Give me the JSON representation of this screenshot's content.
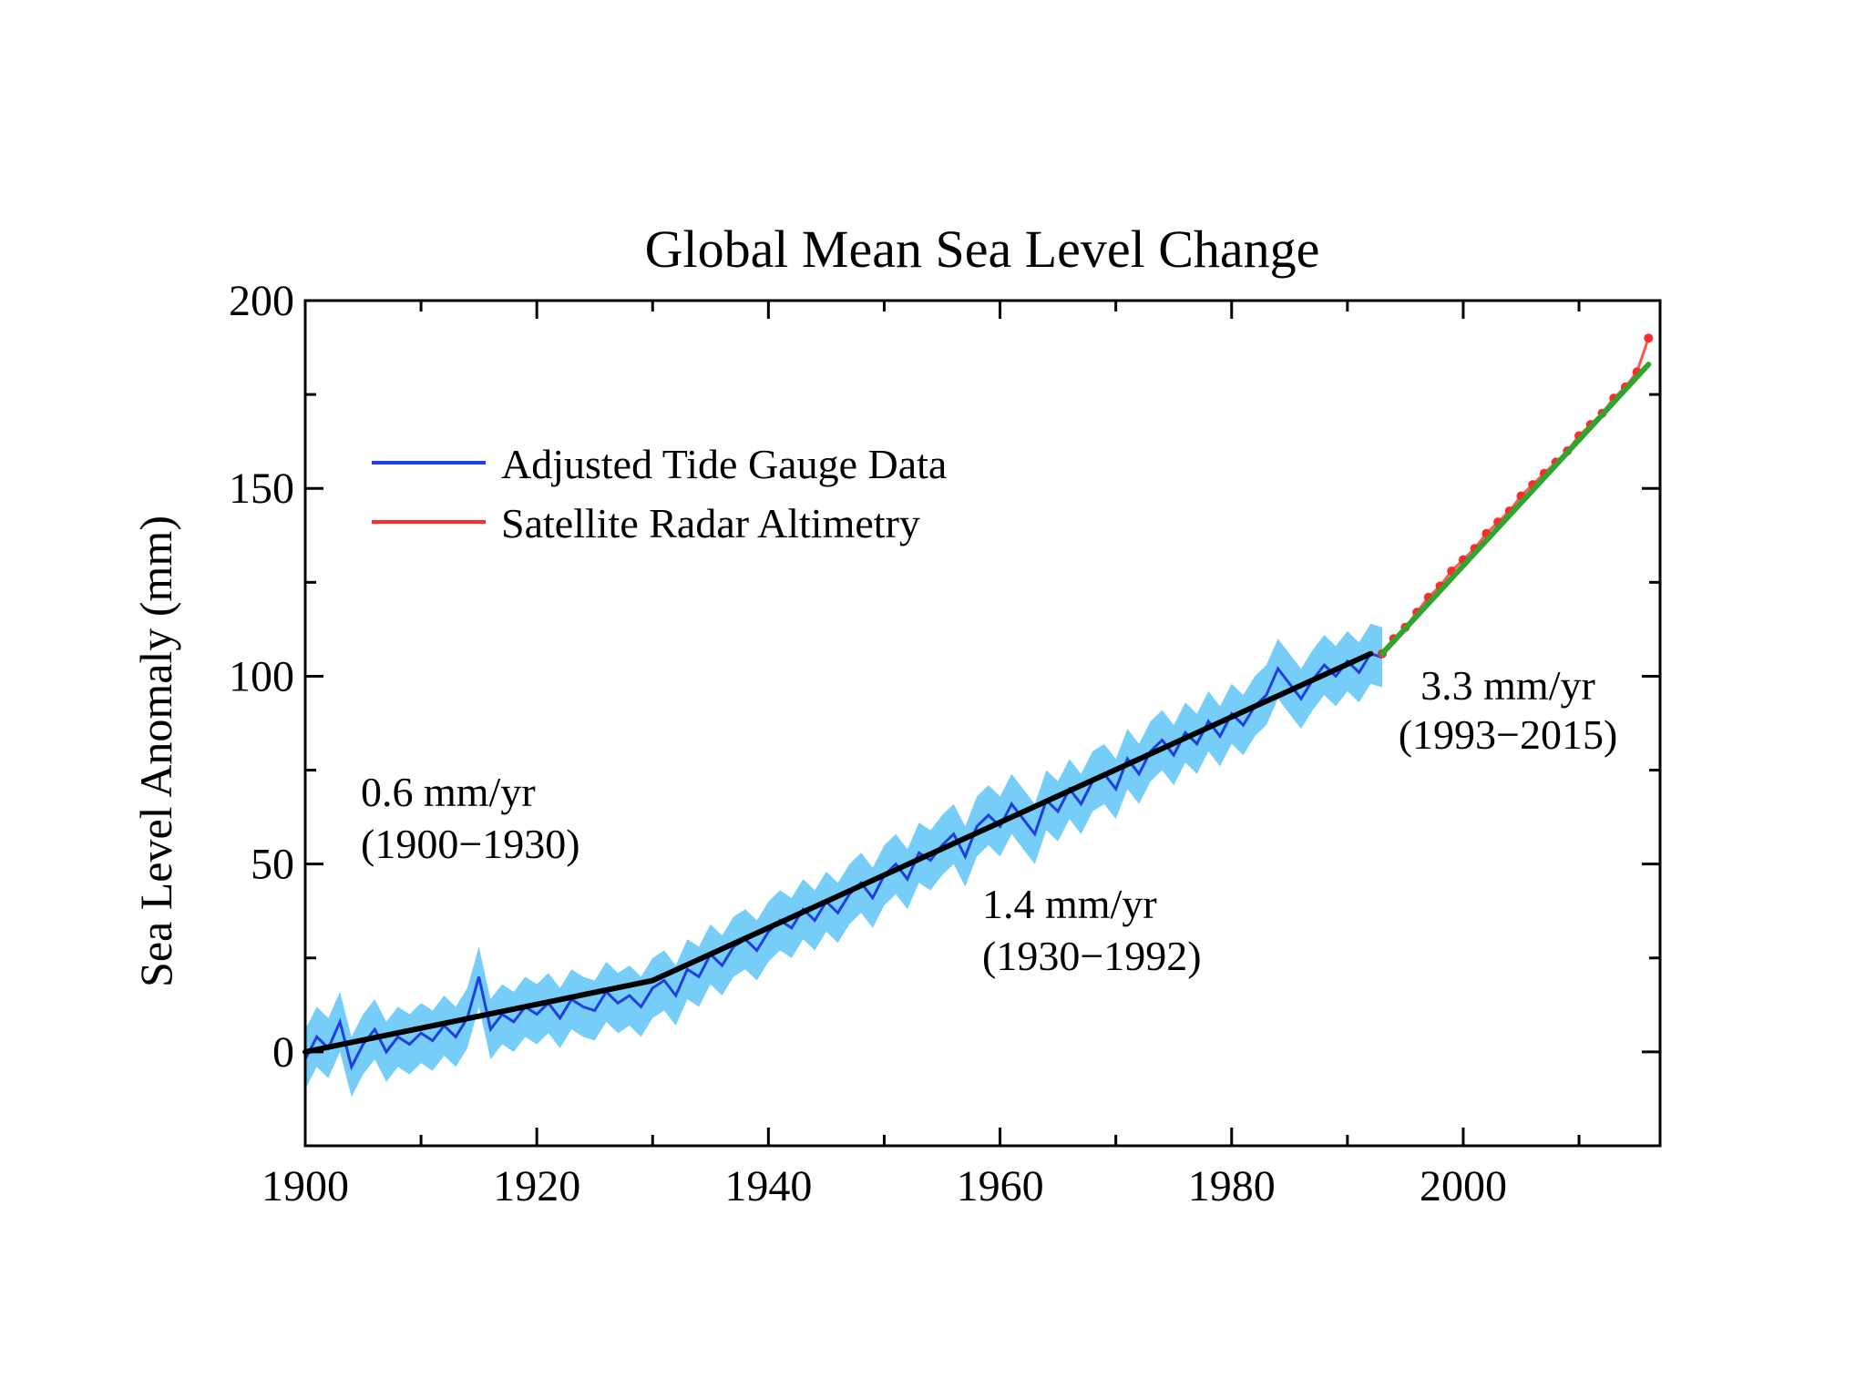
{
  "chart_data": {
    "type": "line",
    "title": "Global Mean Sea Level Change",
    "xlabel": "",
    "ylabel": "Sea Level Anomaly (mm)",
    "xlim": [
      1900,
      2017
    ],
    "ylim": [
      -25,
      200
    ],
    "x_ticks": [
      1900,
      1920,
      1940,
      1960,
      1980,
      2000
    ],
    "x_tick_labels": [
      "1900",
      "1920",
      "1940",
      "1960",
      "1980",
      "2000"
    ],
    "x_minor_ticks": [
      1910,
      1930,
      1950,
      1970,
      1990,
      2010
    ],
    "y_ticks": [
      0,
      50,
      100,
      150,
      200
    ],
    "y_tick_labels": [
      "0",
      "50",
      "100",
      "150",
      "200"
    ],
    "y_minor_ticks": [
      25,
      75,
      125,
      175
    ],
    "grid": false,
    "legend": {
      "position": "top-left",
      "entries": [
        {
          "label": "Adjusted Tide Gauge Data",
          "color": "#1f3fe0"
        },
        {
          "label": "Satellite Radar Altimetry",
          "color": "#ff2a2a"
        }
      ]
    },
    "series": [
      {
        "name": "Adjusted Tide Gauge Data",
        "color": "#1f3fe0",
        "uncertainty_color": "#5ec4f7",
        "uncertainty_mm": 8,
        "x": [
          1900,
          1901,
          1902,
          1903,
          1904,
          1905,
          1906,
          1907,
          1908,
          1909,
          1910,
          1911,
          1912,
          1913,
          1914,
          1915,
          1916,
          1917,
          1918,
          1919,
          1920,
          1921,
          1922,
          1923,
          1924,
          1925,
          1926,
          1927,
          1928,
          1929,
          1930,
          1931,
          1932,
          1933,
          1934,
          1935,
          1936,
          1937,
          1938,
          1939,
          1940,
          1941,
          1942,
          1943,
          1944,
          1945,
          1946,
          1947,
          1948,
          1949,
          1950,
          1951,
          1952,
          1953,
          1954,
          1955,
          1956,
          1957,
          1958,
          1959,
          1960,
          1961,
          1962,
          1963,
          1964,
          1965,
          1966,
          1967,
          1968,
          1969,
          1970,
          1971,
          1972,
          1973,
          1974,
          1975,
          1976,
          1977,
          1978,
          1979,
          1980,
          1981,
          1982,
          1983,
          1984,
          1985,
          1986,
          1987,
          1988,
          1989,
          1990,
          1991,
          1992,
          1993
        ],
        "y": [
          -2,
          4,
          1,
          8,
          -4,
          2,
          6,
          0,
          4,
          2,
          5,
          3,
          7,
          4,
          9,
          20,
          6,
          10,
          8,
          12,
          10,
          13,
          9,
          14,
          12,
          11,
          16,
          13,
          15,
          12,
          17,
          19,
          15,
          22,
          20,
          26,
          23,
          28,
          30,
          27,
          32,
          35,
          33,
          38,
          35,
          40,
          37,
          42,
          45,
          41,
          47,
          50,
          46,
          53,
          51,
          55,
          58,
          52,
          60,
          63,
          60,
          66,
          62,
          58,
          67,
          64,
          70,
          66,
          72,
          74,
          70,
          78,
          74,
          80,
          83,
          79,
          85,
          82,
          88,
          84,
          90,
          87,
          92,
          95,
          102,
          98,
          94,
          99,
          103,
          100,
          104,
          101,
          106,
          105
        ]
      },
      {
        "name": "Satellite Radar Altimetry",
        "color": "#ff2a2a",
        "x": [
          1993,
          1994,
          1995,
          1996,
          1997,
          1998,
          1999,
          2000,
          2001,
          2002,
          2003,
          2004,
          2005,
          2006,
          2007,
          2008,
          2009,
          2010,
          2011,
          2012,
          2013,
          2014,
          2015,
          2016
        ],
        "y": [
          106,
          110,
          113,
          117,
          121,
          124,
          128,
          131,
          134,
          138,
          141,
          144,
          148,
          151,
          154,
          157,
          160,
          164,
          167,
          170,
          174,
          177,
          181,
          190
        ]
      }
    ],
    "trend_lines": [
      {
        "period": "1900–1930",
        "rate": "0.6 mm/yr",
        "x": [
          1900,
          1930
        ],
        "y": [
          0,
          19
        ],
        "color": "#000000"
      },
      {
        "period": "1930–1992",
        "rate": "1.4 mm/yr",
        "x": [
          1930,
          1992
        ],
        "y": [
          19,
          106
        ],
        "color": "#000000"
      },
      {
        "period": "1993–2015",
        "rate": "3.3 mm/yr",
        "x": [
          1993,
          2016
        ],
        "y": [
          106,
          183
        ],
        "color": "#2fa52f"
      }
    ],
    "annotations": {
      "a1_rate": "0.6 mm/yr",
      "a1_period": "(1900−1930)",
      "a2_rate": "1.4 mm/yr",
      "a2_period": "(1930−1992)",
      "a3_rate": "3.3 mm/yr",
      "a3_period": "(1993−2015)"
    }
  }
}
